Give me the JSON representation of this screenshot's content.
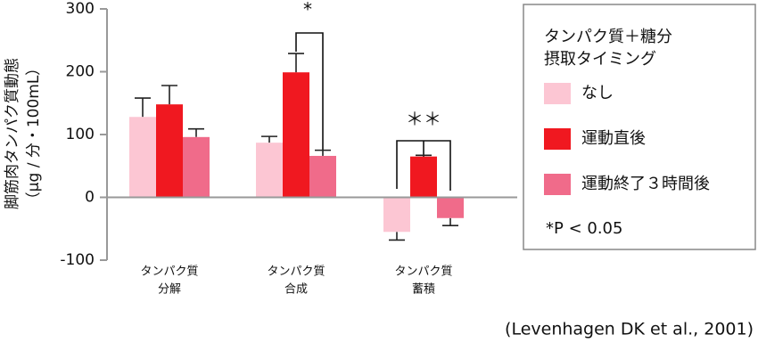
{
  "chart_data": {
    "type": "bar",
    "y_label": [
      "脚筋肉タンパク質動態",
      "（μg / 分・100mL）"
    ],
    "categories": [
      [
        "タンパク質",
        "分解"
      ],
      [
        "タンパク質",
        "合成"
      ],
      [
        "タンパク質",
        "蓄積"
      ]
    ],
    "series": [
      {
        "name": "なし",
        "color": "#fcc6d3",
        "values": [
          128,
          87,
          -55
        ],
        "errors": [
          30,
          10,
          13
        ]
      },
      {
        "name": "運動直後",
        "color": "#f01820",
        "values": [
          148,
          199,
          65
        ],
        "errors": [
          30,
          30,
          2
        ]
      },
      {
        "name": "運動終了３時間後",
        "color": "#f06b8a",
        "values": [
          96,
          66,
          -33
        ],
        "errors": [
          13,
          9,
          12
        ]
      }
    ],
    "ylim": [
      -100,
      300
    ],
    "yticks": [
      -100,
      0,
      100,
      200,
      300
    ],
    "legend_title": [
      "タンパク質＋糖分",
      "摂取タイミング"
    ],
    "significance_note": "*P < 0.05",
    "annotations": [
      "*",
      "＊＊"
    ],
    "source": "(Levenhagen DK et al., 2001)"
  }
}
